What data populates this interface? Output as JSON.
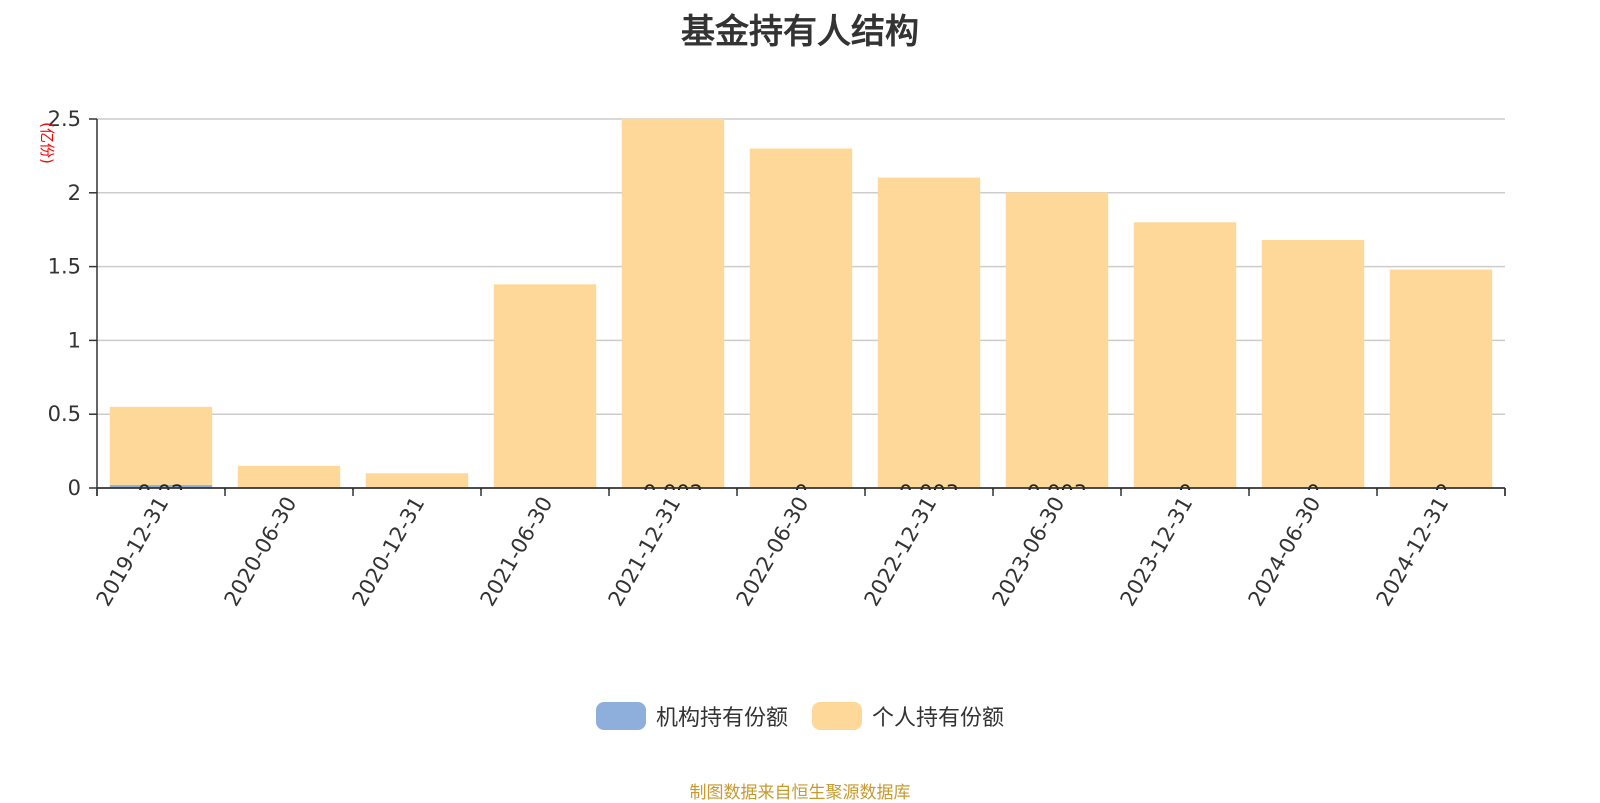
{
  "chart_data": {
    "type": "bar",
    "title": "基金持有人结构",
    "ylabel": "(亿份)",
    "xlabel": "",
    "categories": [
      "2019-12-31",
      "2020-06-30",
      "2020-12-31",
      "2021-06-30",
      "2021-12-31",
      "2022-06-30",
      "2022-12-31",
      "2023-06-30",
      "2023-12-31",
      "2024-06-30",
      "2024-12-31"
    ],
    "ylim": [
      0,
      2.5
    ],
    "yticks": [
      "0",
      "0.5",
      "1",
      "1.5",
      "2",
      "2.5"
    ],
    "grid": true,
    "legend_position": "bottom",
    "series": [
      {
        "name": "机构持有份额",
        "color": "#8eaedb",
        "values": [
          0.02,
          0,
          0,
          0,
          0.002,
          0,
          0.003,
          0.003,
          0,
          0,
          0
        ],
        "labels": [
          "0.02",
          "",
          "",
          "",
          "0.002",
          "0",
          "0.003",
          "0.003",
          "0",
          "0",
          "0"
        ]
      },
      {
        "name": "个人持有份额",
        "color": "#fdd898",
        "values": [
          0.53,
          0.15,
          0.1,
          1.38,
          2.5,
          2.3,
          2.1,
          2.0,
          1.8,
          1.68,
          1.48
        ]
      }
    ]
  },
  "source_note": "制图数据来自恒生聚源数据库",
  "colors": {
    "title": "#333333",
    "ylabel": "#ff0000",
    "grid": "#cccccc",
    "source": "#c89a2e"
  }
}
